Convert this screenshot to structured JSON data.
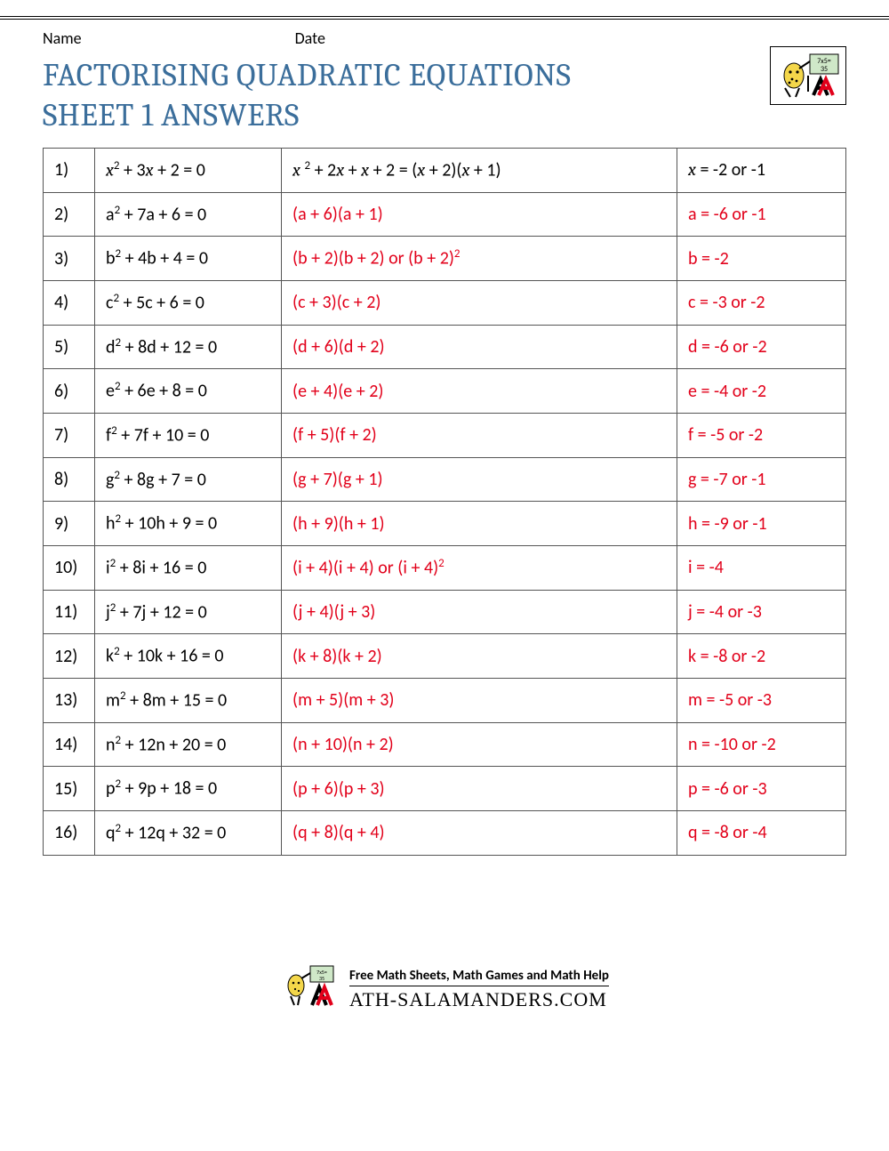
{
  "header": {
    "name_label": "Name",
    "date_label": "Date",
    "title_line1": "FACTORISING QUADRATIC EQUATIONS",
    "title_line2": "SHEET 1 ANSWERS"
  },
  "colors": {
    "title": "#3b6e9b",
    "answer": "#e2001a",
    "text": "#000000",
    "border": "#555555",
    "background": "#ffffff"
  },
  "rows": [
    {
      "n": "1)",
      "eq_html": "<span class='ital'>x</span><sup>2</sup> + 3<span class='ital'>x</span> + 2 = 0",
      "fac_html": "<span class='ital'>x</span> <sup>2</sup> + 2<span class='ital'>x</span> + <span class='ital'>x</span> + 2 = (<span class='ital'>x</span> + 2)(<span class='ital'>x</span> + 1)",
      "fac_red": false,
      "sol_html": "<span class='ital'>x</span> = -2 or -1",
      "sol_red": false
    },
    {
      "n": "2)",
      "eq_html": "a<sup>2</sup> + 7a + 6 = 0",
      "fac_html": "(a + 6)(a + 1)",
      "fac_red": true,
      "sol_html": "a = -6 or -1",
      "sol_red": true
    },
    {
      "n": "3)",
      "eq_html": "b<sup>2</sup> + 4b + 4 = 0",
      "fac_html": "(b + 2)(b + 2) or (b + 2)<sup>2</sup>",
      "fac_red": true,
      "sol_html": "b = -2",
      "sol_red": true
    },
    {
      "n": "4)",
      "eq_html": "c<sup>2</sup> + 5c + 6 = 0",
      "fac_html": "(c + 3)(c + 2)",
      "fac_red": true,
      "sol_html": "c = -3 or -2",
      "sol_red": true
    },
    {
      "n": "5)",
      "eq_html": "d<sup>2</sup> + 8d + 12 = 0",
      "fac_html": "(d + 6)(d + 2)",
      "fac_red": true,
      "sol_html": "d = -6 or -2",
      "sol_red": true
    },
    {
      "n": "6)",
      "eq_html": "e<sup>2</sup> + 6e + 8 = 0",
      "fac_html": "(e + 4)(e + 2)",
      "fac_red": true,
      "sol_html": "e = -4 or -2",
      "sol_red": true
    },
    {
      "n": "7)",
      "eq_html": "f<sup>2</sup> + 7f + 10 = 0",
      "fac_html": "(f + 5)(f + 2)",
      "fac_red": true,
      "sol_html": "f = -5 or -2",
      "sol_red": true
    },
    {
      "n": "8)",
      "eq_html": "g<sup>2</sup> + 8g + 7 = 0",
      "fac_html": "(g + 7)(g + 1)",
      "fac_red": true,
      "sol_html": "g = -7 or -1",
      "sol_red": true
    },
    {
      "n": "9)",
      "eq_html": "h<sup>2</sup> + 10h + 9 = 0",
      "fac_html": "(h + 9)(h + 1)",
      "fac_red": true,
      "sol_html": "h = -9 or -1",
      "sol_red": true
    },
    {
      "n": "10)",
      "eq_html": "i<sup>2</sup> + 8i + 16 = 0",
      "fac_html": "(i + 4)(i + 4) or (i + 4)<sup>2</sup>",
      "fac_red": true,
      "sol_html": "i = -4",
      "sol_red": true
    },
    {
      "n": "11)",
      "eq_html": "j<sup>2</sup> + 7j + 12 = 0",
      "fac_html": "(j + 4)(j + 3)",
      "fac_red": true,
      "sol_html": "j = -4 or -3",
      "sol_red": true
    },
    {
      "n": "12)",
      "eq_html": "k<sup>2</sup> + 10k + 16 = 0",
      "fac_html": "(k + 8)(k + 2)",
      "fac_red": true,
      "sol_html": "k = -8 or -2",
      "sol_red": true
    },
    {
      "n": "13)",
      "eq_html": "m<sup>2</sup> + 8m + 15 = 0",
      "fac_html": "(m + 5)(m + 3)",
      "fac_red": true,
      "sol_html": "m = -5 or -3",
      "sol_red": true
    },
    {
      "n": "14)",
      "eq_html": "n<sup>2</sup> + 12n + 20 = 0",
      "fac_html": "(n + 10)(n + 2)",
      "fac_red": true,
      "sol_html": "n = -10 or -2",
      "sol_red": true
    },
    {
      "n": "15)",
      "eq_html": "p<sup>2</sup> + 9p + 18 = 0",
      "fac_html": "(p + 6)(p + 3)",
      "fac_red": true,
      "sol_html": "p = -6 or -3",
      "sol_red": true
    },
    {
      "n": "16)",
      "eq_html": "q<sup>2</sup> + 12q + 32 = 0",
      "fac_html": "(q + 8)(q + 4)",
      "fac_red": true,
      "sol_html": "q = -8 or -4",
      "sol_red": true
    }
  ],
  "footer": {
    "tagline": "Free Math Sheets, Math Games and Math Help",
    "site": "ATH-SALAMANDERS.COM"
  }
}
